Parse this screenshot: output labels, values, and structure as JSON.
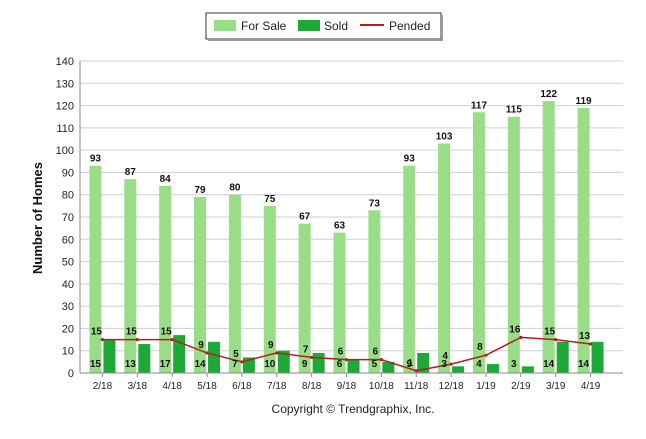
{
  "chart_data": {
    "type": "bar",
    "title": "",
    "xlabel": "",
    "ylabel": "Number of Homes",
    "ylim": [
      0,
      140
    ],
    "yticks": [
      0,
      10,
      20,
      30,
      40,
      50,
      60,
      70,
      80,
      90,
      100,
      110,
      120,
      130,
      140
    ],
    "grid": true,
    "legend_position": "top-center",
    "categories": [
      "2/18",
      "3/18",
      "4/18",
      "5/18",
      "6/18",
      "7/18",
      "8/18",
      "9/18",
      "10/18",
      "11/18",
      "12/18",
      "1/19",
      "2/19",
      "3/19",
      "4/19"
    ],
    "series": [
      {
        "name": "For Sale",
        "kind": "bar",
        "color": "#99dd88",
        "values": [
          93,
          87,
          84,
          79,
          80,
          75,
          67,
          63,
          73,
          93,
          103,
          117,
          115,
          122,
          119
        ]
      },
      {
        "name": "Sold",
        "kind": "bar",
        "color": "#1fa83a",
        "values": [
          15,
          13,
          17,
          14,
          7,
          10,
          9,
          6,
          5,
          9,
          3,
          4,
          3,
          14,
          14
        ]
      },
      {
        "name": "Pended",
        "kind": "line",
        "color": "#b41e1e",
        "values": [
          15,
          15,
          15,
          9,
          5,
          9,
          7,
          6,
          6,
          1,
          4,
          8,
          16,
          15,
          13
        ]
      }
    ]
  },
  "footer": "Copyright © Trendgraphix, Inc."
}
